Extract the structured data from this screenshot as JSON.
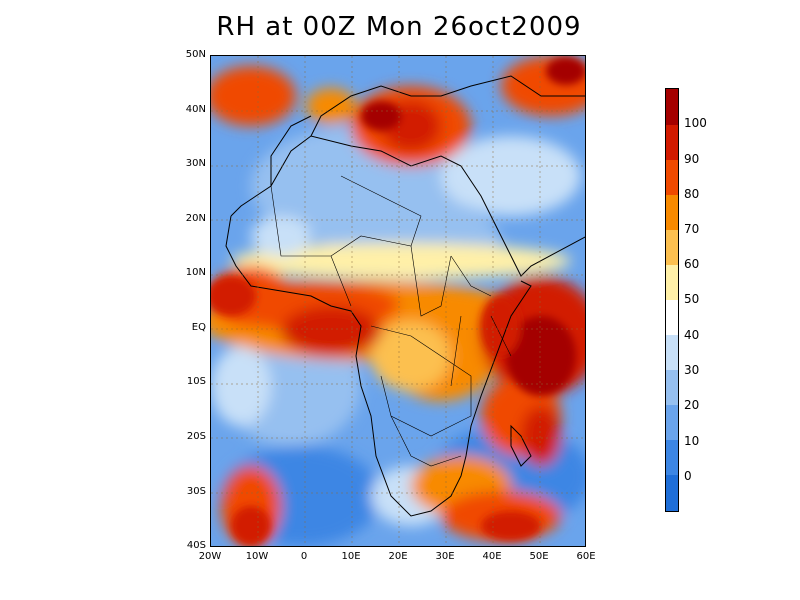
{
  "title": "RH at 00Z Mon 26oct2009",
  "map": {
    "lat_labels": [
      "50N",
      "40N",
      "30N",
      "20N",
      "10N",
      "EQ",
      "10S",
      "20S",
      "30S",
      "40S"
    ],
    "lon_labels": [
      "20W",
      "10W",
      "0",
      "10E",
      "20E",
      "30E",
      "40E",
      "50E",
      "60E"
    ],
    "lon_range": [
      -20,
      60
    ],
    "lat_range": [
      -40,
      50
    ],
    "variable": "relative humidity (%)"
  },
  "colorbar": {
    "labels": [
      "100",
      "90",
      "80",
      "70",
      "60",
      "50",
      "40",
      "30",
      "20",
      "10",
      "0"
    ],
    "colors": [
      "#a40000",
      "#d21a00",
      "#f04a00",
      "#f88a00",
      "#fcc050",
      "#fff0a8",
      "#ffffff",
      "#c8e0f8",
      "#96c0f0",
      "#6aa4ec",
      "#3c86e4",
      "#1e6ed8"
    ]
  }
}
